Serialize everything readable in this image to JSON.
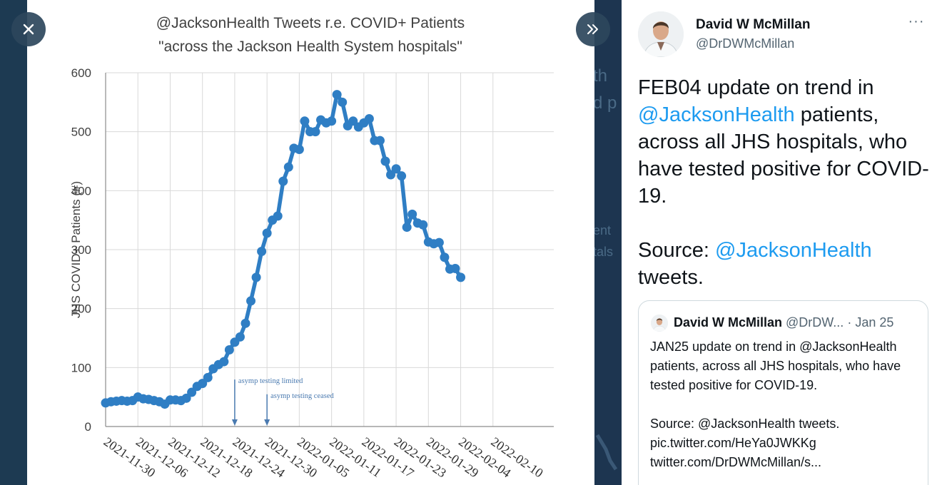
{
  "media": {
    "close_label": "Close",
    "expand_label": "Show tweet",
    "chart_title_line1": "@JacksonHealth Tweets r.e. COVID+ Patients",
    "chart_title_line2": "\"across the Jackson Health System hospitals\""
  },
  "background_text": {
    "fragments": [
      "th",
      "d p",
      "ient",
      "tals"
    ]
  },
  "chart_data": {
    "type": "line",
    "title": "@JacksonHealth Tweets r.e. COVID+ Patients \"across the Jackson Health System hospitals\"",
    "xlabel": "",
    "ylabel": "JHS COVID+ Patients (#)",
    "ylim": [
      0,
      600
    ],
    "yticks": [
      0,
      100,
      200,
      300,
      400,
      500,
      600
    ],
    "x_start": "2021-11-30",
    "x_end": "2022-02-16",
    "xtick_labels": [
      "2021-11-30",
      "2021-12-06",
      "2021-12-12",
      "2021-12-18",
      "2021-12-24",
      "2021-12-30",
      "2022-01-05",
      "2022-01-11",
      "2022-01-17",
      "2022-01-23",
      "2022-01-29",
      "2022-02-04",
      "2022-02-10"
    ],
    "grid": true,
    "series_color": "#2f7ec4",
    "series": [
      {
        "x": [
          "2021-11-30",
          "2021-12-01",
          "2021-12-02",
          "2021-12-03",
          "2021-12-04",
          "2021-12-05",
          "2021-12-06",
          "2021-12-07",
          "2021-12-08",
          "2021-12-09",
          "2021-12-10",
          "2021-12-11",
          "2021-12-12",
          "2021-12-13",
          "2021-12-14",
          "2021-12-15",
          "2021-12-16",
          "2021-12-17",
          "2021-12-18",
          "2021-12-19",
          "2021-12-20",
          "2021-12-21",
          "2021-12-22",
          "2021-12-23",
          "2021-12-24",
          "2021-12-25",
          "2021-12-26",
          "2021-12-27",
          "2021-12-28",
          "2021-12-29",
          "2021-12-30",
          "2021-12-31",
          "2022-01-01",
          "2022-01-02",
          "2022-01-03",
          "2022-01-04",
          "2022-01-05",
          "2022-01-06",
          "2022-01-07",
          "2022-01-08",
          "2022-01-09",
          "2022-01-10",
          "2022-01-11",
          "2022-01-12",
          "2022-01-13",
          "2022-01-14",
          "2022-01-15",
          "2022-01-16",
          "2022-01-17",
          "2022-01-18",
          "2022-01-19",
          "2022-01-20",
          "2022-01-21",
          "2022-01-22",
          "2022-01-23",
          "2022-01-24",
          "2022-01-25",
          "2022-01-26",
          "2022-01-27",
          "2022-01-28",
          "2022-01-29",
          "2022-01-30",
          "2022-01-31",
          "2022-02-01",
          "2022-02-02",
          "2022-02-03",
          "2022-02-04"
        ],
        "values": [
          40,
          42,
          43,
          44,
          43,
          44,
          50,
          47,
          46,
          44,
          42,
          38,
          45,
          45,
          44,
          48,
          58,
          68,
          73,
          83,
          98,
          105,
          110,
          130,
          143,
          152,
          175,
          213,
          253,
          297,
          328,
          350,
          357,
          416,
          440,
          472,
          470,
          518,
          500,
          500,
          520,
          515,
          518,
          563,
          550,
          510,
          518,
          508,
          515,
          522,
          485,
          485,
          450,
          427,
          437,
          425,
          338,
          360,
          345,
          342,
          313,
          310,
          312,
          287,
          267,
          268,
          253
        ]
      }
    ],
    "annotations": [
      {
        "text": "asymp testing limited",
        "x": "2021-12-24",
        "y": 70
      },
      {
        "text": "asymp testing ceased",
        "x": "2021-12-30",
        "y": 45
      }
    ]
  },
  "tweet": {
    "author_name": "David W McMillan",
    "author_handle": "@DrDWMcMillan",
    "more_label": "···",
    "body_part1": "FEB04 update on trend in ",
    "body_mention1": "@JacksonHealth",
    "body_part2": " patients, across all JHS hospitals, who have tested positive for COVID-19.",
    "body_source_label": "Source: ",
    "body_mention2": "@JacksonHealth",
    "body_part3": " tweets."
  },
  "quote": {
    "author_name": "David W McMillan",
    "author_handle": "@DrDW...",
    "separator": "·",
    "date": "Jan 25",
    "line1": "JAN25 update on trend in @JacksonHealth patients, across all JHS hospitals, who have tested positive for COVID-19.",
    "line2": "Source: @JacksonHealth tweets.",
    "link1": "pic.twitter.com/HeYa0JWKKg",
    "link2": "twitter.com/DrDWMcMillan/s..."
  },
  "colors": {
    "accent_blue": "#1d9bf0",
    "series_blue": "#2f7ec4",
    "annotation_blue": "#4a7ab0",
    "backdrop": "#1d3550"
  }
}
